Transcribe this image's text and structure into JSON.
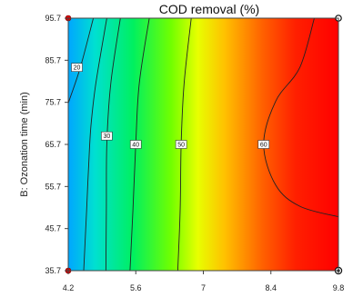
{
  "chart_data": {
    "type": "contour",
    "title": "COD removal  (%)",
    "xlabel": "",
    "ylabel": "B: Ozonation time (min)",
    "x_ticks": [
      "4.2",
      "5.6",
      "7",
      "8.4",
      "9.8"
    ],
    "y_ticks": [
      "95.7",
      "85.7",
      "75.7",
      "65.7",
      "55.7",
      "45.7",
      "35.7"
    ],
    "xlim": [
      4.2,
      9.8
    ],
    "ylim": [
      35.7,
      95.7
    ],
    "contour_levels": [
      {
        "value": 20,
        "label": "20"
      },
      {
        "value": 30,
        "label": "30"
      },
      {
        "value": 40,
        "label": "40"
      },
      {
        "value": 50,
        "label": "50"
      },
      {
        "value": 60,
        "label": "60"
      }
    ],
    "contour_lines": [
      {
        "level": 20,
        "points": [
          [
            4.2,
            75.5
          ],
          [
            4.45,
            84.0
          ],
          [
            4.72,
            95.7
          ]
        ]
      },
      {
        "level": 25,
        "points": [
          [
            4.52,
            35.7
          ],
          [
            4.58,
            50.0
          ],
          [
            4.62,
            60.0
          ],
          [
            4.67,
            70.0
          ],
          [
            4.77,
            80.0
          ],
          [
            5.0,
            95.7
          ]
        ]
      },
      {
        "level": 30,
        "points": [
          [
            4.98,
            35.7
          ],
          [
            4.99,
            50.0
          ],
          [
            5.0,
            65.7
          ],
          [
            5.08,
            80.0
          ],
          [
            5.28,
            95.7
          ]
        ]
      },
      {
        "level": 40,
        "points": [
          [
            5.48,
            35.7
          ],
          [
            5.54,
            50.0
          ],
          [
            5.6,
            65.7
          ],
          [
            5.67,
            80.0
          ],
          [
            5.88,
            95.7
          ]
        ]
      },
      {
        "level": 50,
        "points": [
          [
            6.47,
            35.7
          ],
          [
            6.52,
            50.0
          ],
          [
            6.54,
            65.7
          ],
          [
            6.6,
            80.0
          ],
          [
            6.75,
            95.7
          ]
        ]
      },
      {
        "level": 60,
        "points": [
          [
            9.8,
            48.5
          ],
          [
            9.0,
            51.0
          ],
          [
            8.5,
            56.0
          ],
          [
            8.25,
            65.7
          ],
          [
            8.5,
            76.0
          ],
          [
            9.0,
            84.0
          ],
          [
            9.3,
            95.7
          ]
        ]
      }
    ],
    "contour_label_positions": [
      {
        "label": "20",
        "x": 4.38,
        "y": 84.0
      },
      {
        "label": "30",
        "x": 5.0,
        "y": 67.7
      },
      {
        "label": "40",
        "x": 5.6,
        "y": 65.7
      },
      {
        "label": "50",
        "x": 6.54,
        "y": 65.7
      },
      {
        "label": "60",
        "x": 8.25,
        "y": 65.7
      }
    ],
    "design_points": [
      {
        "x": 4.2,
        "y": 95.7,
        "style": "red-dot"
      },
      {
        "x": 9.8,
        "y": 95.7,
        "style": "open-circle"
      },
      {
        "x": 4.2,
        "y": 35.7,
        "style": "red-dot"
      },
      {
        "x": 9.8,
        "y": 35.7,
        "style": "circled-dot"
      }
    ],
    "color_scale": [
      "#00a0ff",
      "#00ff60",
      "#ffe000",
      "#ff0000"
    ],
    "color_range": [
      10,
      70
    ],
    "grid": false,
    "legend": "none"
  }
}
